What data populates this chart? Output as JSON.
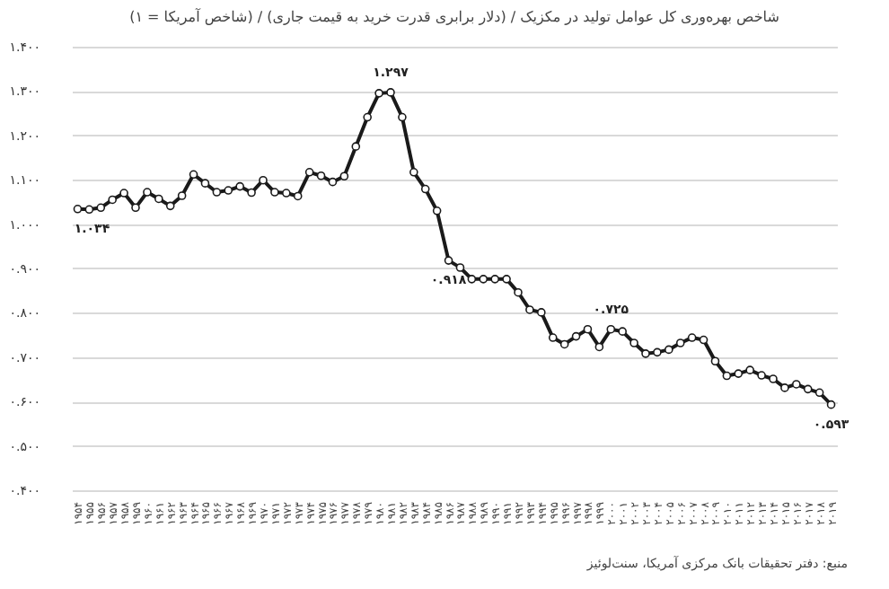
{
  "chart_data": {
    "type": "line",
    "title": "شاخص بهره‌وری کل عوامل تولید در مکزیک / (دلار برابری قدرت خرید به قیمت جاری) / (شاخص آمریکا = ۱)",
    "categories": [
      "۱۹۵۴",
      "۱۹۵۵",
      "۱۹۵۶",
      "۱۹۵۷",
      "۱۹۵۸",
      "۱۹۵۹",
      "۱۹۶۰",
      "۱۹۶۱",
      "۱۹۶۲",
      "۱۹۶۳",
      "۱۹۶۴",
      "۱۹۶۵",
      "۱۹۶۶",
      "۱۹۶۷",
      "۱۹۶۸",
      "۱۹۶۹",
      "۱۹۷۰",
      "۱۹۷۱",
      "۱۹۷۲",
      "۱۹۷۳",
      "۱۹۷۴",
      "۱۹۷۵",
      "۱۹۷۶",
      "۱۹۷۷",
      "۱۹۷۸",
      "۱۹۷۹",
      "۱۹۸۰",
      "۱۹۸۱",
      "۱۹۸۲",
      "۱۹۸۳",
      "۱۹۸۴",
      "۱۹۸۵",
      "۱۹۸۶",
      "۱۹۸۷",
      "۱۹۸۸",
      "۱۹۸۹",
      "۱۹۹۰",
      "۱۹۹۱",
      "۱۹۹۲",
      "۱۹۹۳",
      "۱۹۹۴",
      "۱۹۹۵",
      "۱۹۹۶",
      "۱۹۹۷",
      "۱۹۹۸",
      "۱۹۹۹",
      "۲۰۰۰",
      "۲۰۰۱",
      "۲۰۰۲",
      "۲۰۰۳",
      "۲۰۰۴",
      "۲۰۰۵",
      "۲۰۰۶",
      "۲۰۰۷",
      "۲۰۰۸",
      "۲۰۰۹",
      "۲۰۱۰",
      "۲۰۱۱",
      "۲۰۱۲",
      "۲۰۱۳",
      "۲۰۱۴",
      "۲۰۱۵",
      "۲۰۱۶",
      "۲۰۱۷",
      "۲۰۱۸",
      "۲۰۱۹"
    ],
    "series": [
      {
        "color": "#1a1a1a",
        "values": [
          1.034,
          1.033,
          1.037,
          1.055,
          1.07,
          1.037,
          1.072,
          1.057,
          1.041,
          1.064,
          1.112,
          1.092,
          1.072,
          1.076,
          1.085,
          1.071,
          1.099,
          1.072,
          1.07,
          1.063,
          1.117,
          1.109,
          1.095,
          1.108,
          1.175,
          1.241,
          1.295,
          1.297,
          1.241,
          1.117,
          1.079,
          1.03,
          0.918,
          0.902,
          0.876,
          0.876,
          0.876,
          0.876,
          0.846,
          0.807,
          0.801,
          0.744,
          0.729,
          0.747,
          0.763,
          0.723,
          0.763,
          0.758,
          0.732,
          0.708,
          0.711,
          0.717,
          0.732,
          0.744,
          0.739,
          0.691,
          0.658,
          0.663,
          0.671,
          0.659,
          0.651,
          0.631,
          0.639,
          0.628,
          0.62,
          0.593
        ]
      }
    ],
    "ylim": [
      0.4,
      1.4
    ],
    "yticks": [
      {
        "value": 0.4,
        "label": "۰.۴۰۰"
      },
      {
        "value": 0.5,
        "label": "۰.۵۰۰"
      },
      {
        "value": 0.6,
        "label": "۰.۶۰۰"
      },
      {
        "value": 0.7,
        "label": "۰.۷۰۰"
      },
      {
        "value": 0.8,
        "label": "۰.۸۰۰"
      },
      {
        "value": 0.9,
        "label": "۰.۹۰۰"
      },
      {
        "value": 1.0,
        "label": "۱.۰۰۰"
      },
      {
        "value": 1.1,
        "label": "۱.۱۰۰"
      },
      {
        "value": 1.2,
        "label": "۱.۲۰۰"
      },
      {
        "value": 1.3,
        "label": "۱.۳۰۰"
      },
      {
        "value": 1.4,
        "label": "۱.۴۰۰"
      }
    ],
    "grid": "y",
    "marker": "circle",
    "line_style": "solid",
    "annotations": [
      {
        "text": "۱.۰۳۴",
        "x": "۱۹۵۴",
        "y": 1.034
      },
      {
        "text": "۱.۲۹۷",
        "x": "۱۹۸۱",
        "y": 1.297
      },
      {
        "text": "۰.۹۱۸",
        "x": "۱۹۸۶",
        "y": 0.918
      },
      {
        "text": "۰.۷۲۵",
        "x": "۲۰۰۰",
        "y": 0.763
      },
      {
        "text": "۰.۵۹۳",
        "x": "۲۰۱۹",
        "y": 0.593
      },
      "منبع: دفتر تحقیقات بانک مرکزی آمریکا، سنت‌لوئیز"
    ]
  }
}
